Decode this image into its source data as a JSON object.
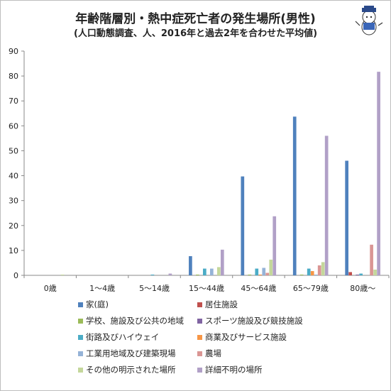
{
  "titles": {
    "main": "年齢階層別・熱中症死亡者の発生場所(男性)",
    "sub": "(人口動態調査、人、2016年と過去2年を合わせた平均値)"
  },
  "chart_data": {
    "type": "bar",
    "categories": [
      "0歳",
      "1～4歳",
      "5～14歳",
      "15～44歳",
      "45～64歳",
      "65～79歳",
      "80歳～"
    ],
    "ylim": [
      0,
      90
    ],
    "yticks": [
      0,
      10,
      20,
      30,
      40,
      50,
      60,
      70,
      80,
      90
    ],
    "grid": false,
    "legend_position": "bottom",
    "series": [
      {
        "name": "家(庭)",
        "color": "#4F81BD",
        "values": [
          0,
          0,
          0,
          7.7,
          39.7,
          63.7,
          46.0
        ]
      },
      {
        "name": "居住施設",
        "color": "#C0504D",
        "values": [
          0,
          0,
          0,
          0,
          0,
          0,
          1.3
        ]
      },
      {
        "name": "学校、施設及び公共の地域",
        "color": "#9BBB59",
        "values": [
          0,
          0,
          0,
          0.3,
          0.3,
          0.3,
          0
        ]
      },
      {
        "name": "スポーツ施設及び競技施設",
        "color": "#8064A2",
        "values": [
          0,
          0,
          0,
          0,
          0,
          0,
          0.3
        ]
      },
      {
        "name": "街路及びハイウェイ",
        "color": "#4BACC6",
        "values": [
          0,
          0,
          0.3,
          2.7,
          2.7,
          2.7,
          0.7
        ]
      },
      {
        "name": "商業及びサービス施設",
        "color": "#F79646",
        "values": [
          0,
          0,
          0,
          0,
          0.3,
          1.7,
          0
        ]
      },
      {
        "name": "工業用地域及び建築現場",
        "color": "#95B3D7",
        "values": [
          0,
          0,
          0,
          2.7,
          3.0,
          0.3,
          0
        ]
      },
      {
        "name": "農場",
        "color": "#DA9694",
        "values": [
          0,
          0,
          0,
          0,
          1.0,
          4.0,
          12.3
        ]
      },
      {
        "name": "その他の明示された場所",
        "color": "#C4D79B",
        "values": [
          0.3,
          0,
          0,
          3.3,
          6.3,
          5.3,
          2.3
        ]
      },
      {
        "name": "詳細不明の場所",
        "color": "#B1A0C7",
        "values": [
          0,
          0,
          0.7,
          10.3,
          23.7,
          56.0,
          81.7
        ]
      }
    ]
  }
}
